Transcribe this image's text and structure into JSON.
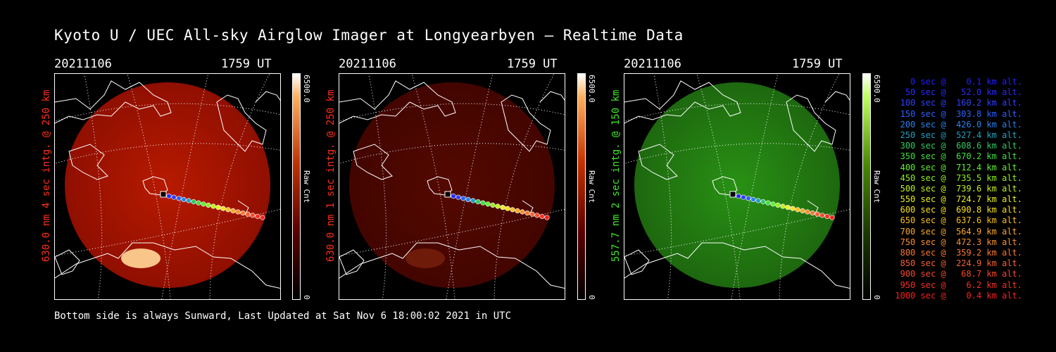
{
  "title": "Kyoto U / UEC All-sky Airglow Imager at Longyearbyen — Realtime Data",
  "footer": "Bottom side is always Sunward, Last Updated at Sat Nov  6 18:00:02 2021 in UTC",
  "colors": {
    "background": "#000000",
    "red_channel": "#ff3a1a",
    "green_channel": "#3cff2a"
  },
  "panels": [
    {
      "date": "20211106",
      "time": "1759 UT",
      "ylabel": "630.0 nm  4 sec intg. @ 250 km",
      "label_color": "#ff3018",
      "colorbar_max": "6500.0",
      "colorbar_min": "0",
      "colorbar_unit": "Raw Cnt",
      "colormap": "red",
      "brightness": 0.85
    },
    {
      "date": "20211106",
      "time": "1759 UT",
      "ylabel": "630.0 nm  1 sec intg. @ 250 km",
      "label_color": "#ff3018",
      "colorbar_max": "6500.0",
      "colorbar_min": "0",
      "colorbar_unit": "Raw Cnt",
      "colormap": "red",
      "brightness": 0.3
    },
    {
      "date": "20211106",
      "time": "1759 UT",
      "ylabel": "557.7 nm  2 sec intg. @ 150 km",
      "label_color": "#40e828",
      "colorbar_max": "6500.0",
      "colorbar_min": "0",
      "colorbar_unit": "Raw Cnt",
      "colormap": "green",
      "brightness": 0.7
    }
  ],
  "legend": [
    {
      "text": "   0 sec @    0.1 km alt.",
      "color": "#2020ff"
    },
    {
      "text": "  50 sec @   52.0 km alt.",
      "color": "#2a2aff"
    },
    {
      "text": " 100 sec @  160.2 km alt.",
      "color": "#2e40ff"
    },
    {
      "text": " 150 sec @  303.8 km alt.",
      "color": "#2a60ff"
    },
    {
      "text": " 200 sec @  426.0 km alt.",
      "color": "#2a80ee"
    },
    {
      "text": " 250 sec @  527.4 km alt.",
      "color": "#20a0c0"
    },
    {
      "text": " 300 sec @  608.6 km alt.",
      "color": "#30c860"
    },
    {
      "text": " 350 sec @  670.2 km alt.",
      "color": "#40e040"
    },
    {
      "text": " 400 sec @  712.4 km alt.",
      "color": "#60f030"
    },
    {
      "text": " 450 sec @  735.5 km alt.",
      "color": "#90f020"
    },
    {
      "text": " 500 sec @  739.6 km alt.",
      "color": "#c0f020"
    },
    {
      "text": " 550 sec @  724.7 km alt.",
      "color": "#e8f020"
    },
    {
      "text": " 600 sec @  690.8 km alt.",
      "color": "#f8e020"
    },
    {
      "text": " 650 sec @  637.6 km alt.",
      "color": "#f8c020"
    },
    {
      "text": " 700 sec @  564.9 km alt.",
      "color": "#f8a828"
    },
    {
      "text": " 750 sec @  472.3 km alt.",
      "color": "#f89030"
    },
    {
      "text": " 800 sec @  359.2 km alt.",
      "color": "#f87830"
    },
    {
      "text": " 850 sec @  224.9 km alt.",
      "color": "#f86030"
    },
    {
      "text": " 900 sec @   68.7 km alt.",
      "color": "#f84828"
    },
    {
      "text": " 950 sec @    6.2 km alt.",
      "color": "#f83020"
    },
    {
      "text": "1000 sec @    0.4 km alt.",
      "color": "#f82020"
    }
  ]
}
